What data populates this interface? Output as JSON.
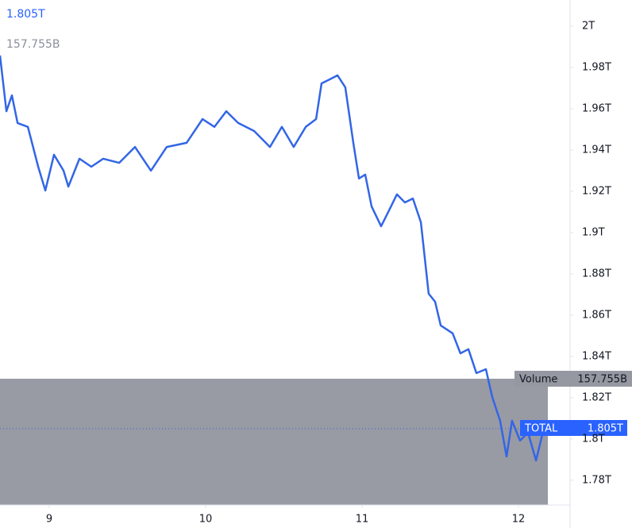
{
  "chart_data": {
    "type": "line",
    "legend_price": "1.805T",
    "legend_volume": "157.755B",
    "volume_name": "Volume",
    "volume_label": "157.755B",
    "price_tag": "1.805T",
    "x": [
      8.685,
      8.726,
      8.761,
      8.797,
      8.863,
      8.929,
      8.975,
      9.03,
      9.091,
      9.122,
      9.193,
      9.269,
      9.345,
      9.447,
      9.548,
      9.65,
      9.751,
      9.878,
      9.98,
      10.056,
      10.132,
      10.208,
      10.31,
      10.411,
      10.487,
      10.563,
      10.64,
      10.706,
      10.741,
      10.792,
      10.843,
      10.893,
      10.944,
      10.98,
      11.02,
      11.061,
      11.122,
      11.173,
      11.223,
      11.274,
      11.325,
      11.376,
      11.426,
      11.467,
      11.503,
      11.579,
      11.629,
      11.68,
      11.731,
      11.792,
      11.832,
      11.883,
      11.924,
      11.959,
      12.01,
      12.061,
      12.112,
      12.162
    ],
    "series": [
      {
        "name": "TOTAL",
        "color": "#3366e6",
        "values": [
          1.9858,
          1.9588,
          1.9665,
          1.9531,
          1.9512,
          1.9319,
          1.9204,
          1.9377,
          1.93,
          1.9223,
          1.9358,
          1.9319,
          1.9358,
          1.9338,
          1.9415,
          1.93,
          1.9415,
          1.9435,
          1.955,
          1.9512,
          1.9588,
          1.9531,
          1.9492,
          1.9415,
          1.9512,
          1.9415,
          1.9512,
          1.955,
          1.9723,
          1.9742,
          1.9762,
          1.9704,
          1.9435,
          1.9262,
          1.9281,
          1.9127,
          1.9031,
          1.9108,
          1.9185,
          1.9146,
          1.9165,
          1.905,
          1.8704,
          1.8665,
          1.855,
          1.8512,
          1.8415,
          1.8435,
          1.8319,
          1.8338,
          1.8204,
          1.8088,
          1.7915,
          1.8088,
          1.7992,
          1.8031,
          1.7896,
          1.805
        ]
      }
    ],
    "xlim": [
      8.685,
      12.33
    ],
    "xticks": [
      9,
      10,
      11,
      12
    ],
    "ylim": [
      1.768,
      2.0127
    ],
    "yticks": [
      {
        "value": 2,
        "label": "2T"
      },
      {
        "value": 1.98,
        "label": "1.98T"
      },
      {
        "value": 1.96,
        "label": "1.96T"
      },
      {
        "value": 1.94,
        "label": "1.94T"
      },
      {
        "value": 1.92,
        "label": "1.92T"
      },
      {
        "value": 1.9,
        "label": "1.9T"
      },
      {
        "value": 1.88,
        "label": "1.88T"
      },
      {
        "value": 1.86,
        "label": "1.86T"
      },
      {
        "value": 1.84,
        "label": "1.84T"
      },
      {
        "value": 1.82,
        "label": "1.82T"
      },
      {
        "value": 1.8,
        "label": "1.8T"
      },
      {
        "value": 1.78,
        "label": "1.78T"
      }
    ]
  }
}
